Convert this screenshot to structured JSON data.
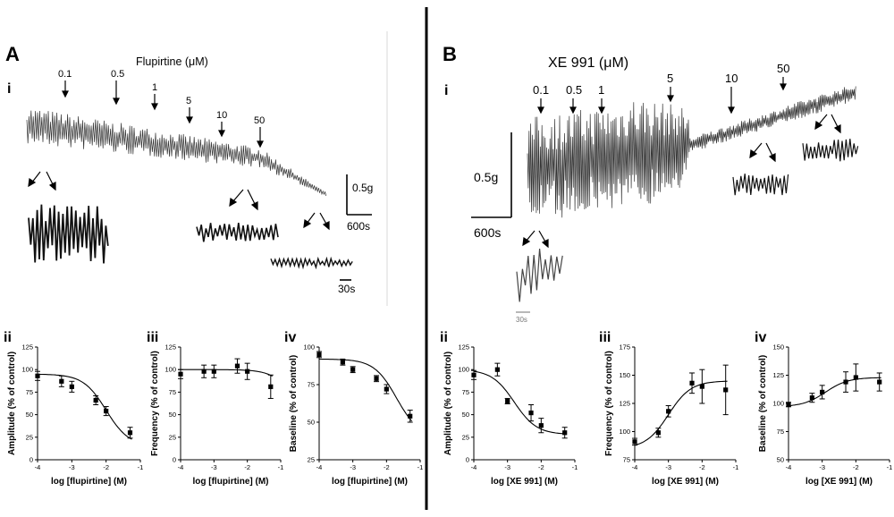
{
  "panels": {
    "a": {
      "label": "A",
      "sub_i": "i",
      "title": "Flupirtine (μM)",
      "concentrations": [
        "0.1",
        "0.5",
        "1",
        "5",
        "10",
        "50"
      ],
      "scale_amp": "0.5g",
      "scale_time": "600s",
      "scale_inset": "30s"
    },
    "b": {
      "label": "B",
      "sub_i": "i",
      "title": "XE 991 (μM)",
      "concentrations": [
        "0.1",
        "0.5",
        "1",
        "5",
        "10",
        "50"
      ],
      "scale_amp": "0.5g",
      "scale_time": "600s",
      "scale_inset": "30s"
    }
  },
  "chart_data": [
    {
      "id": "a-ii",
      "type": "scatter",
      "sublabel": "ii",
      "xlabel": "log [flupirtine] (M)",
      "ylabel": "Amplitude (% of control)",
      "xlim": [
        -4,
        -1
      ],
      "ylim": [
        0,
        125
      ],
      "xticks": [
        "-4",
        "-3",
        "-2",
        "-1"
      ],
      "yticks": [
        "0",
        "25",
        "50",
        "75",
        "100",
        "125"
      ],
      "x": [
        -4,
        -3.3,
        -3,
        -2.3,
        -2,
        -1.3
      ],
      "y": [
        93,
        87,
        81,
        66,
        54,
        30
      ],
      "err": [
        5,
        6,
        6,
        5,
        5,
        6
      ],
      "fit": {
        "top": 95,
        "bottom": 15,
        "ec50": -2.0,
        "slope": -1
      }
    },
    {
      "id": "a-iii",
      "type": "scatter",
      "sublabel": "iii",
      "xlabel": "log [flupirtine] (M)",
      "ylabel": "Frequency (% of control)",
      "xlim": [
        -4,
        -1
      ],
      "ylim": [
        0,
        125
      ],
      "xticks": [
        "-4",
        "-3",
        "-2",
        "-1"
      ],
      "yticks": [
        "0",
        "25",
        "50",
        "75",
        "100",
        "125"
      ],
      "x": [
        -4,
        -3.3,
        -3,
        -2.3,
        -2,
        -1.3
      ],
      "y": [
        95,
        98,
        98,
        104,
        98,
        81
      ],
      "err": [
        5,
        7,
        7,
        8,
        9,
        13
      ],
      "fit": {
        "top": 100,
        "bottom": 0,
        "ec50": -0.4,
        "slope": -1
      }
    },
    {
      "id": "a-iv",
      "type": "scatter",
      "sublabel": "iv",
      "xlabel": "log [flupirtine] (M)",
      "ylabel": "Baseline (% of control)",
      "xlim": [
        -4,
        -1
      ],
      "ylim": [
        25,
        100
      ],
      "xticks": [
        "-4",
        "-3",
        "-2",
        "-1"
      ],
      "yticks": [
        "25",
        "50",
        "75",
        "100"
      ],
      "x": [
        -4,
        -3.3,
        -3,
        -2.3,
        -2,
        -1.3
      ],
      "y": [
        95,
        90,
        85,
        79,
        72,
        54
      ],
      "err": [
        2,
        2,
        2,
        2,
        3,
        4
      ],
      "fit": {
        "top": 92,
        "bottom": 40,
        "ec50": -1.7,
        "slope": -1
      }
    },
    {
      "id": "b-ii",
      "type": "scatter",
      "sublabel": "ii",
      "xlabel": "log [XE 991] (M)",
      "ylabel": "Amplitude (% of control)",
      "xlim": [
        -4,
        -1
      ],
      "ylim": [
        0,
        125
      ],
      "xticks": [
        "-4",
        "-3",
        "-2",
        "-1"
      ],
      "yticks": [
        "0",
        "25",
        "50",
        "75",
        "100",
        "125"
      ],
      "x": [
        -4,
        -3.3,
        -3,
        -2.3,
        -2,
        -1.3
      ],
      "y": [
        94,
        100,
        65,
        52,
        38,
        30
      ],
      "err": [
        5,
        7,
        3,
        9,
        8,
        6
      ],
      "fit": {
        "top": 100,
        "bottom": 28,
        "ec50": -2.8,
        "slope": -1
      }
    },
    {
      "id": "b-iii",
      "type": "scatter",
      "sublabel": "iii",
      "xlabel": "log [XE 991] (M)",
      "ylabel": "Frequency (% of control)",
      "xlim": [
        -4,
        -1
      ],
      "ylim": [
        75,
        175
      ],
      "xticks": [
        "-4",
        "-3",
        "-2",
        "-1"
      ],
      "yticks": [
        "75",
        "100",
        "125",
        "150",
        "175"
      ],
      "x": [
        -4,
        -3.3,
        -3,
        -2.3,
        -2,
        -1.3
      ],
      "y": [
        91,
        99,
        118,
        143,
        140,
        137
      ],
      "err": [
        3,
        4,
        5,
        9,
        15,
        22
      ],
      "fit": {
        "top": 145,
        "bottom": 85,
        "ec50": -3.0,
        "slope": 1
      }
    },
    {
      "id": "b-iv",
      "type": "scatter",
      "sublabel": "iv",
      "xlabel": "log [XE 991] (M)",
      "ylabel": "Baseline (% of control)",
      "xlim": [
        -4,
        -1
      ],
      "ylim": [
        50,
        150
      ],
      "xticks": [
        "-4",
        "-3",
        "-2",
        "-1"
      ],
      "yticks": [
        "50",
        "75",
        "100",
        "125",
        "150"
      ],
      "x": [
        -4,
        -3.3,
        -3,
        -2.3,
        -2,
        -1.3
      ],
      "y": [
        99,
        105,
        110,
        119,
        123,
        119
      ],
      "err": [
        2,
        4,
        6,
        9,
        12,
        8
      ],
      "fit": {
        "top": 123,
        "bottom": 97,
        "ec50": -2.9,
        "slope": 1
      }
    }
  ]
}
